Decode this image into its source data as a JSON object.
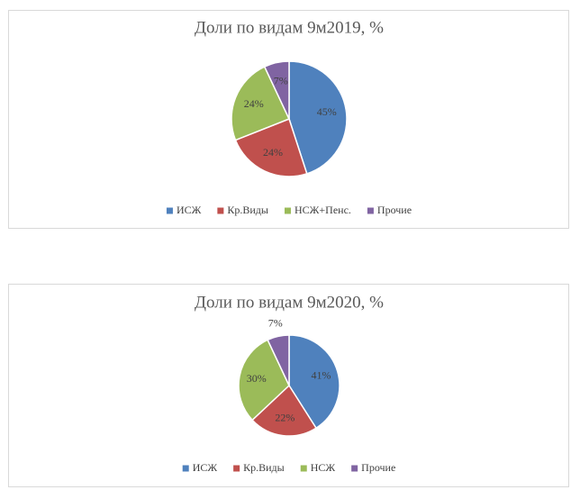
{
  "chart_data": [
    {
      "type": "pie",
      "title": "Доли по видам 9м2019, %",
      "categories": [
        "ИСЖ",
        "Кр.Виды",
        "НСЖ+Пенс.",
        "Прочие"
      ],
      "values": [
        45,
        24,
        24,
        7
      ],
      "value_labels": [
        "45%",
        "24%",
        "24%",
        "7%"
      ],
      "colors": [
        "#4f81bd",
        "#c0504d",
        "#9bbb59",
        "#8064a2"
      ],
      "legend": "bottom"
    },
    {
      "type": "pie",
      "title": "Доли по видам 9м2020, %",
      "categories": [
        "ИСЖ",
        "Кр.Виды",
        "НСЖ",
        "Прочие"
      ],
      "values": [
        41,
        22,
        30,
        7
      ],
      "value_labels": [
        "41%",
        "22%",
        "30%",
        "7%"
      ],
      "colors": [
        "#4f81bd",
        "#c0504d",
        "#9bbb59",
        "#8064a2"
      ],
      "legend": "bottom"
    }
  ]
}
